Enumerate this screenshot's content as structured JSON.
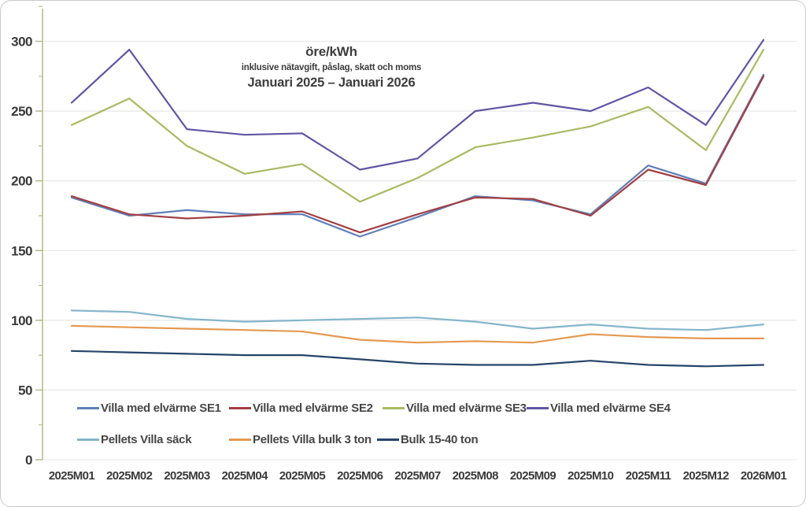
{
  "chart_data": {
    "type": "line",
    "title": "öre/kWh",
    "subtitle": "inklusive nätavgift, påslag, skatt och moms",
    "period": "Januari 2025 – Januari 2026",
    "ylim": [
      0,
      300
    ],
    "ytick_step": 50,
    "grid": true,
    "legend_position": "inside-bottom-left",
    "axis_color": "#b5b98a",
    "grid_color": "#e9e9e9",
    "text_color": "#3d3d3d",
    "categories": [
      "2025M01",
      "2025M02",
      "2025M03",
      "2025M04",
      "2025M05",
      "2025M06",
      "2025M07",
      "2025M08",
      "2025M09",
      "2025M10",
      "2025M11",
      "2025M12",
      "2026M01"
    ],
    "series": [
      {
        "name": "Villa med elvärme SE1",
        "color": "#5f7fb8",
        "values": [
          188,
          175,
          179,
          176,
          176,
          160,
          174,
          189,
          186,
          176,
          211,
          198,
          276
        ]
      },
      {
        "name": "Villa med elvärme SE2",
        "color": "#a33f44",
        "values": [
          189,
          176,
          173,
          175,
          178,
          163,
          176,
          188,
          187,
          175,
          208,
          197,
          275
        ]
      },
      {
        "name": "Villa med elvärme SE3",
        "color": "#a8ba62",
        "values": [
          240,
          259,
          225,
          205,
          212,
          185,
          202,
          224,
          231,
          239,
          253,
          222,
          294
        ]
      },
      {
        "name": "Villa med elvärme SE4",
        "color": "#5f55a5",
        "values": [
          256,
          294,
          237,
          233,
          234,
          208,
          216,
          250,
          256,
          250,
          267,
          240,
          301
        ]
      },
      {
        "name": "Pellets Villa säck",
        "color": "#85b5cb",
        "values": [
          107,
          106,
          101,
          99,
          100,
          101,
          102,
          99,
          94,
          97,
          94,
          93,
          97
        ]
      },
      {
        "name": "Pellets Villa bulk 3 ton",
        "color": "#e49a52",
        "values": [
          96,
          95,
          94,
          93,
          92,
          86,
          84,
          85,
          84,
          90,
          88,
          87,
          87
        ]
      },
      {
        "name": "Bulk 15-40 ton",
        "color": "#254469",
        "values": [
          78,
          77,
          76,
          75,
          75,
          72,
          69,
          68,
          68,
          71,
          68,
          67,
          68
        ]
      }
    ]
  }
}
